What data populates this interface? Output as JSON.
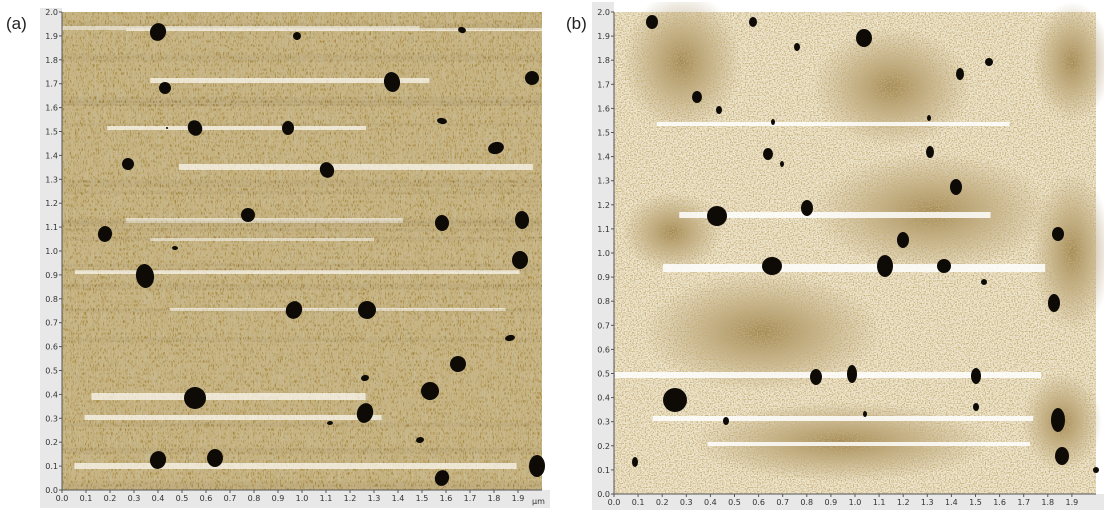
{
  "panels": [
    {
      "label": "(a)",
      "y_ticks": [
        "0.0",
        "0.1",
        "0.2",
        "0.3",
        "0.4",
        "0.5",
        "0.6",
        "0.7",
        "0.8",
        "0.9",
        "1.0",
        "1.1",
        "1.2",
        "1.3",
        "1.4",
        "1.5",
        "1.6",
        "1.7",
        "1.8",
        "1.9",
        "2.0"
      ],
      "x_ticks": [
        "0.0",
        "0.1",
        "0.2",
        "0.3",
        "0.4",
        "0.5",
        "0.6",
        "0.7",
        "0.8",
        "0.9",
        "1.0",
        "1.1",
        "1.2",
        "1.3",
        "1.4",
        "1.5",
        "1.6",
        "1.7",
        "1.8",
        "1.9"
      ],
      "unit": "µm",
      "colors": {
        "base": "#a98a3f",
        "light": "#f4efe2",
        "dark": "#6e5420",
        "pit": "#0e0b06"
      }
    },
    {
      "label": "(b)",
      "y_ticks": [
        "0.0",
        "0.1",
        "0.2",
        "0.3",
        "0.4",
        "0.5",
        "0.6",
        "0.7",
        "0.8",
        "0.9",
        "1.0",
        "1.1",
        "1.2",
        "1.3",
        "1.4",
        "1.5",
        "1.6",
        "1.7",
        "1.8",
        "1.9",
        "2.0"
      ],
      "x_ticks": [
        "0.0",
        "0.1",
        "0.2",
        "0.3",
        "0.4",
        "0.5",
        "0.6",
        "0.7",
        "0.8",
        "0.9",
        "1.0",
        "1.1",
        "1.2",
        "1.3",
        "1.4",
        "1.5",
        "1.6",
        "1.7",
        "1.8",
        "1.9"
      ],
      "unit": "",
      "colors": {
        "base": "#c9b27a",
        "light": "#ffffff",
        "dark": "#8a6a2e",
        "pit": "#0e0b06"
      }
    }
  ]
}
